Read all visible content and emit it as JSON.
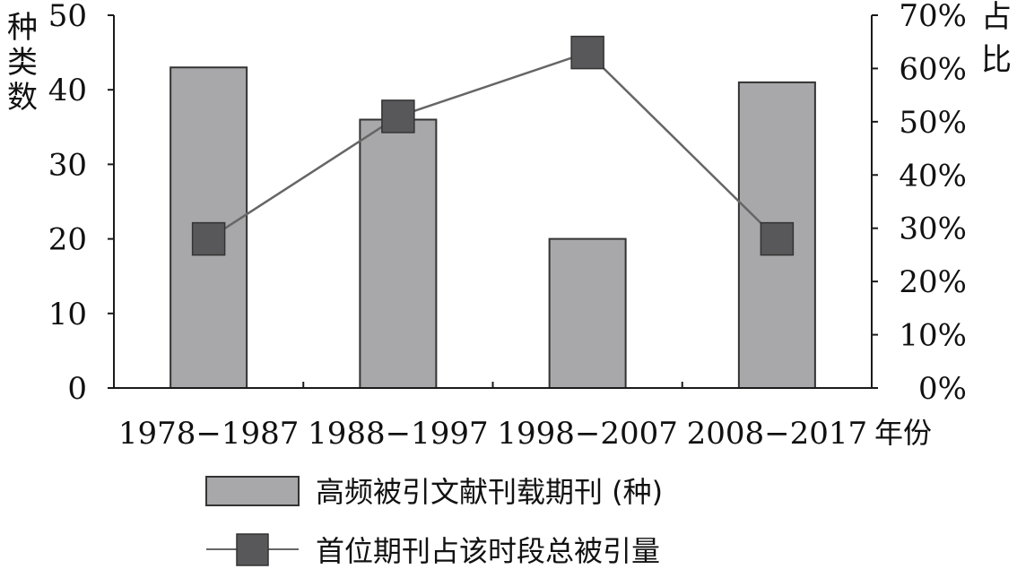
{
  "chart_data": {
    "type": "bar",
    "categories": [
      "1978−1987",
      "1988−1997",
      "1998−2007",
      "2008−2017"
    ],
    "series": [
      {
        "name": "高频被引文献刊载期刊 (种)",
        "kind": "bar",
        "axis": "left",
        "values": [
          43,
          36,
          20,
          41
        ]
      },
      {
        "name": "首位期刊占该时段总被引量",
        "kind": "line",
        "axis": "right",
        "values": [
          0.28,
          0.51,
          0.63,
          0.28
        ]
      }
    ],
    "left_axis": {
      "label": "种类数",
      "ylim": [
        0,
        50
      ],
      "ticks": [
        "0",
        "10",
        "20",
        "30",
        "40",
        "50"
      ]
    },
    "right_axis": {
      "label": "占比",
      "ylim": [
        0,
        0.7
      ],
      "ticks": [
        "0%",
        "10%",
        "20%",
        "30%",
        "40%",
        "50%",
        "60%",
        "70%"
      ]
    },
    "xlabel": "年份",
    "grid": false,
    "legend_position": "bottom",
    "colors": {
      "bar_fill": "#a8a8aa",
      "bar_stroke": "#333333",
      "line": "#666666",
      "marker": "#58585a"
    }
  }
}
